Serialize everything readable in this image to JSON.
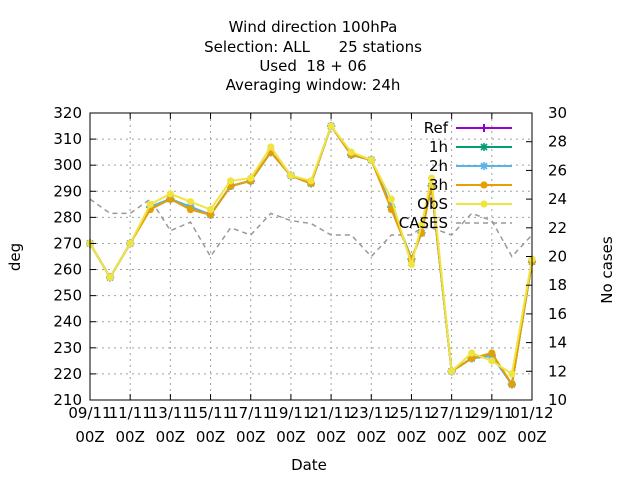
{
  "chart_data": {
    "type": "line",
    "title_lines": [
      "Wind direction 100hPa",
      "Selection: ALL      25 stations",
      "Used  18 + 06",
      "Averaging window: 24h"
    ],
    "xlabel": "Date",
    "ylabel": "deg",
    "y2label": "No cases",
    "ylim": [
      210,
      320
    ],
    "y2lim": [
      10,
      30
    ],
    "yticks": [
      210,
      220,
      230,
      240,
      250,
      260,
      270,
      280,
      290,
      300,
      310,
      320
    ],
    "y2ticks": [
      10,
      12,
      14,
      16,
      18,
      20,
      22,
      24,
      26,
      28,
      30
    ],
    "xlim": [
      0,
      22
    ],
    "xticks": [
      {
        "x": 0,
        "line1": "09/11",
        "line2": "00Z"
      },
      {
        "x": 2,
        "line1": "11/11",
        "line2": "00Z"
      },
      {
        "x": 4,
        "line1": "13/11",
        "line2": "00Z"
      },
      {
        "x": 6,
        "line1": "15/11",
        "line2": "00Z"
      },
      {
        "x": 8,
        "line1": "17/11",
        "line2": "00Z"
      },
      {
        "x": 10,
        "line1": "19/11",
        "line2": "00Z"
      },
      {
        "x": 12,
        "line1": "21/11",
        "line2": "00Z"
      },
      {
        "x": 14,
        "line1": "23/11",
        "line2": "00Z"
      },
      {
        "x": 16,
        "line1": "25/11",
        "line2": "00Z"
      },
      {
        "x": 18,
        "line1": "27/11",
        "line2": "00Z"
      },
      {
        "x": 20,
        "line1": "29/11",
        "line2": "00Z"
      },
      {
        "x": 22,
        "line1": "01/12",
        "line2": "00Z"
      }
    ],
    "grid": true,
    "legend_position": "top-right",
    "x": [
      0,
      1,
      2,
      3,
      4,
      5,
      6,
      7,
      8,
      9,
      10,
      11,
      12,
      13,
      14,
      15,
      16,
      16.5,
      17,
      18,
      19,
      20,
      21,
      22
    ],
    "series": [
      {
        "name": "Ref",
        "color": "#9400d3",
        "marker": "plus",
        "axis": "y",
        "values": [
          270,
          257,
          270,
          284,
          287,
          284,
          281,
          292,
          294,
          305,
          296,
          293,
          315,
          304,
          302,
          284,
          264,
          274,
          292,
          221,
          226,
          227,
          216,
          263
        ]
      },
      {
        "name": "1h",
        "color": "#009e73",
        "marker": "star",
        "axis": "y",
        "values": [
          270,
          257,
          270,
          284,
          287,
          284,
          281,
          292,
          294,
          305,
          296,
          293,
          315,
          304,
          302,
          284,
          264,
          274,
          292,
          221,
          226,
          227,
          216,
          263
        ]
      },
      {
        "name": "2h",
        "color": "#56b4e9",
        "marker": "star",
        "axis": "y",
        "values": [
          270,
          257,
          270,
          284,
          287,
          284,
          281,
          292,
          294,
          305,
          296,
          293,
          315,
          304,
          302,
          284,
          264,
          274,
          292,
          221,
          226,
          227,
          216,
          263
        ]
      },
      {
        "name": "3h",
        "color": "#e69f00",
        "marker": "circle",
        "axis": "y",
        "values": [
          270,
          257,
          270,
          283,
          287,
          283,
          281,
          292,
          294,
          305,
          296,
          293,
          315,
          304,
          302,
          283,
          264,
          274,
          292,
          221,
          226,
          228,
          216,
          263
        ]
      },
      {
        "name": "ObS",
        "color": "#f0e442",
        "marker": "circle",
        "axis": "y",
        "values": [
          270,
          257,
          270,
          285,
          289,
          286,
          283,
          294,
          295,
          307,
          296,
          294,
          315,
          305,
          302,
          287,
          262,
          277,
          295,
          221,
          228,
          225,
          220,
          264
        ]
      },
      {
        "name": "CASES",
        "color": "#999999",
        "marker": "none",
        "dash": true,
        "axis": "y2",
        "values": [
          24,
          23,
          23,
          24,
          21.8,
          22.4,
          20,
          22,
          21.5,
          23,
          22.5,
          22.3,
          21.5,
          21.5,
          20,
          21.5,
          21.5,
          22,
          22,
          21.5,
          23,
          22.5,
          20,
          21.5
        ],
        "x": [
          0,
          1,
          2,
          3,
          4,
          5,
          6,
          7,
          8,
          9,
          10,
          11,
          12,
          13,
          14,
          15,
          16,
          16.5,
          17,
          18,
          19,
          20,
          21,
          22
        ]
      }
    ]
  }
}
